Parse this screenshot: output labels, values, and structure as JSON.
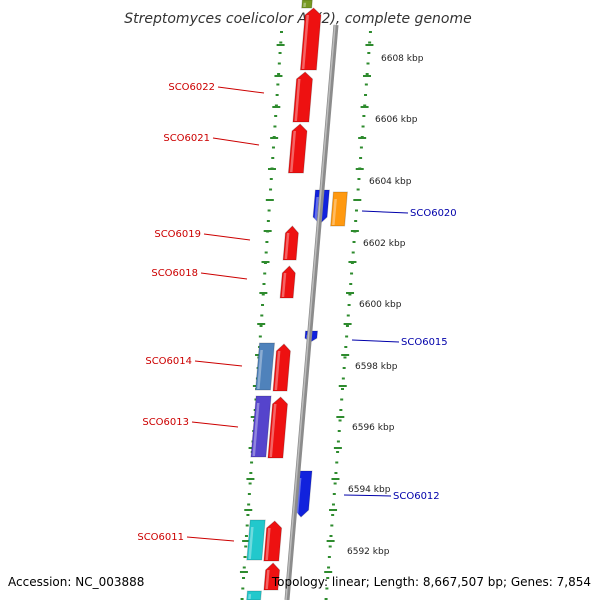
{
  "title": "Streptomyces coelicolor A3(2), complete genome",
  "footer": {
    "accession": "Accession: NC_003888",
    "summary": "Topology: linear; Length: 8,667,507 bp; Genes: 7,854"
  },
  "colors": {
    "backbone": "#8c8c8c",
    "ticks": "#2e8b2e",
    "label_left": "#cc0000",
    "label_right": "#0000aa",
    "gene_red": "#ee1111",
    "gene_blue": "#1122dd",
    "gene_orange": "#ff9910",
    "gene_steel": "#4f82bb",
    "gene_violet": "#5544cc",
    "gene_cyan": "#22c8cc",
    "gene_olive": "#779922"
  },
  "kbp_labels": [
    "6608 kbp",
    "6606 kbp",
    "6604 kbp",
    "6602 kbp",
    "6600 kbp",
    "6598 kbp",
    "6596 kbp",
    "6594 kbp",
    "6592 kbp"
  ],
  "gene_labels_left": [
    "SCO6022",
    "SCO6021",
    "SCO6019",
    "SCO6018",
    "SCO6014",
    "SCO6013",
    "SCO6011"
  ],
  "gene_labels_right": [
    "SCO6020",
    "SCO6015",
    "SCO6012"
  ]
}
